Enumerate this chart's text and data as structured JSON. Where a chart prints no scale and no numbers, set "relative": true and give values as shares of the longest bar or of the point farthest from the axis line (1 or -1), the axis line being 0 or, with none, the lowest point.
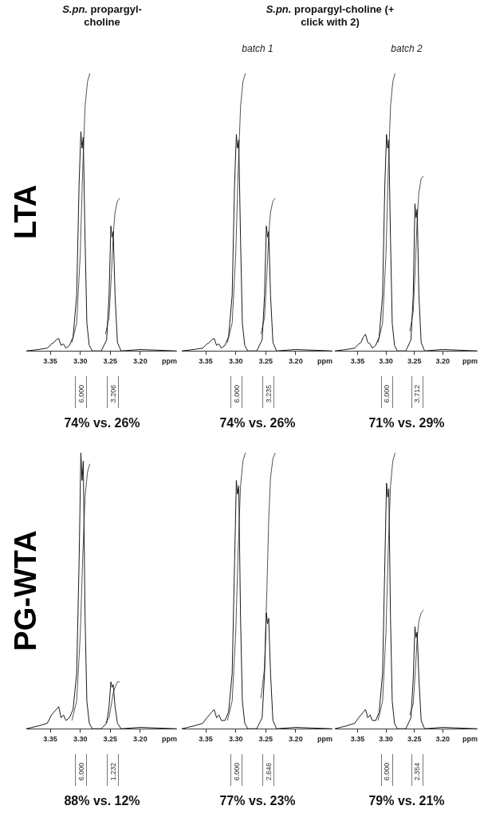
{
  "chart_data": [
    {
      "type": "line",
      "title": "S.pn. propargyl-choline",
      "ylabel": "LTA",
      "xlabel": "ppm",
      "relative": true,
      "xlim": [
        3.39,
        3.14
      ],
      "xticks": [
        {
          "value": 3.35,
          "label": "3.35"
        },
        {
          "value": 3.3,
          "label": "3.30"
        },
        {
          "value": 3.25,
          "label": "3.25"
        },
        {
          "value": 3.2,
          "label": "3.20"
        }
      ],
      "series": [
        {
          "color": "#1a1a1a",
          "x": [
            3.39,
            3.37,
            3.355,
            3.348,
            3.344,
            3.34,
            3.336,
            3.332,
            3.328,
            3.324,
            3.318,
            3.312,
            3.306,
            3.302,
            3.299,
            3.297,
            3.295,
            3.292,
            3.289,
            3.285,
            3.28,
            3.265,
            3.256,
            3.252,
            3.249,
            3.247,
            3.245,
            3.242,
            3.238,
            3.232,
            3.2,
            3.14
          ],
          "values": [
            0,
            0.005,
            0.01,
            0.025,
            0.03,
            0.04,
            0.045,
            0.02,
            0.025,
            0.01,
            0.02,
            0.05,
            0.2,
            0.6,
            0.79,
            0.73,
            0.77,
            0.4,
            0.1,
            0.02,
            0,
            0,
            0.04,
            0.2,
            0.45,
            0.41,
            0.43,
            0.2,
            0.03,
            0,
            0.005,
            0
          ]
        },
        {
          "color": "#555555",
          "x": [
            3.314,
            3.306,
            3.3,
            3.296,
            3.292,
            3.288,
            3.284,
            3.27,
            3.258,
            3.252,
            3.248,
            3.245,
            3.242,
            3.238,
            3.234
          ],
          "values": [
            0.03,
            0.1,
            0.35,
            0.65,
            0.88,
            0.97,
            1.0,
            null,
            0.06,
            0.12,
            0.28,
            0.42,
            0.5,
            0.54,
            0.55
          ]
        }
      ],
      "annotations": [
        "6.000",
        "3.206",
        "74% vs. 26%"
      ]
    },
    {
      "type": "line",
      "title": "S.pn. propargyl-choline (+ click with 2)",
      "subtitle": "batch 1",
      "xlabel": "ppm",
      "relative": true,
      "xlim": [
        3.39,
        3.14
      ],
      "xticks": [
        {
          "value": 3.35,
          "label": "3.35"
        },
        {
          "value": 3.3,
          "label": "3.30"
        },
        {
          "value": 3.25,
          "label": "3.25"
        },
        {
          "value": 3.2,
          "label": "3.20"
        }
      ],
      "series": [
        {
          "color": "#1a1a1a",
          "x": [
            3.39,
            3.37,
            3.355,
            3.348,
            3.344,
            3.34,
            3.336,
            3.332,
            3.328,
            3.324,
            3.318,
            3.312,
            3.306,
            3.302,
            3.299,
            3.297,
            3.295,
            3.292,
            3.289,
            3.285,
            3.28,
            3.265,
            3.256,
            3.252,
            3.249,
            3.247,
            3.245,
            3.242,
            3.238,
            3.232,
            3.2,
            3.14
          ],
          "values": [
            0,
            0.005,
            0.01,
            0.025,
            0.03,
            0.04,
            0.045,
            0.02,
            0.025,
            0.01,
            0.02,
            0.05,
            0.2,
            0.6,
            0.78,
            0.73,
            0.76,
            0.4,
            0.1,
            0.02,
            0,
            0,
            0.04,
            0.2,
            0.45,
            0.41,
            0.43,
            0.2,
            0.03,
            0,
            0.005,
            0
          ]
        },
        {
          "color": "#555555",
          "x": [
            3.314,
            3.306,
            3.3,
            3.296,
            3.292,
            3.288,
            3.284,
            3.27,
            3.258,
            3.252,
            3.248,
            3.245,
            3.242,
            3.238,
            3.234
          ],
          "values": [
            0.03,
            0.1,
            0.35,
            0.65,
            0.88,
            0.97,
            1.0,
            null,
            0.06,
            0.12,
            0.28,
            0.42,
            0.5,
            0.54,
            0.55
          ]
        }
      ],
      "annotations": [
        "6.000",
        "3.235",
        "74% vs. 26%"
      ]
    },
    {
      "type": "line",
      "subtitle": "batch 2",
      "xlabel": "ppm",
      "relative": true,
      "xlim": [
        3.39,
        3.14
      ],
      "xticks": [
        {
          "value": 3.35,
          "label": "3.35"
        },
        {
          "value": 3.3,
          "label": "3.30"
        },
        {
          "value": 3.25,
          "label": "3.25"
        },
        {
          "value": 3.2,
          "label": "3.20"
        }
      ],
      "series": [
        {
          "color": "#1a1a1a",
          "x": [
            3.39,
            3.37,
            3.355,
            3.348,
            3.344,
            3.34,
            3.336,
            3.332,
            3.328,
            3.324,
            3.318,
            3.312,
            3.306,
            3.302,
            3.299,
            3.297,
            3.295,
            3.292,
            3.289,
            3.285,
            3.28,
            3.265,
            3.256,
            3.252,
            3.249,
            3.247,
            3.245,
            3.242,
            3.238,
            3.232,
            3.2,
            3.14
          ],
          "values": [
            0,
            0.005,
            0.01,
            0.025,
            0.03,
            0.05,
            0.06,
            0.03,
            0.025,
            0.01,
            0.02,
            0.05,
            0.2,
            0.6,
            0.78,
            0.73,
            0.76,
            0.4,
            0.1,
            0.02,
            0,
            0,
            0.04,
            0.2,
            0.53,
            0.48,
            0.51,
            0.2,
            0.03,
            0,
            0.005,
            0
          ]
        },
        {
          "color": "#555555",
          "x": [
            3.314,
            3.306,
            3.3,
            3.296,
            3.292,
            3.288,
            3.284,
            3.27,
            3.258,
            3.252,
            3.248,
            3.245,
            3.242,
            3.238,
            3.234
          ],
          "values": [
            0.03,
            0.1,
            0.35,
            0.65,
            0.88,
            0.97,
            1.0,
            null,
            0.07,
            0.14,
            0.32,
            0.48,
            0.57,
            0.62,
            0.63
          ]
        }
      ],
      "annotations": [
        "6.000",
        "3.712",
        "71% vs. 29%"
      ]
    },
    {
      "type": "line",
      "ylabel": "PG-WTA",
      "xlabel": "ppm",
      "relative": true,
      "xlim": [
        3.39,
        3.14
      ],
      "xticks": [
        {
          "value": 3.35,
          "label": "3.35"
        },
        {
          "value": 3.3,
          "label": "3.30"
        },
        {
          "value": 3.25,
          "label": "3.25"
        },
        {
          "value": 3.2,
          "label": "3.20"
        }
      ],
      "series": [
        {
          "color": "#1a1a1a",
          "x": [
            3.39,
            3.37,
            3.355,
            3.348,
            3.344,
            3.34,
            3.336,
            3.332,
            3.328,
            3.324,
            3.318,
            3.312,
            3.306,
            3.302,
            3.299,
            3.297,
            3.295,
            3.292,
            3.289,
            3.285,
            3.28,
            3.265,
            3.256,
            3.252,
            3.249,
            3.247,
            3.245,
            3.242,
            3.238,
            3.232,
            3.2,
            3.14
          ],
          "values": [
            0,
            0.01,
            0.02,
            0.05,
            0.06,
            0.07,
            0.08,
            0.04,
            0.05,
            0.03,
            0.04,
            0.07,
            0.2,
            0.6,
            1.0,
            0.9,
            0.97,
            0.4,
            0.1,
            0.02,
            0,
            0,
            0.02,
            0.08,
            0.17,
            0.15,
            0.16,
            0.08,
            0.02,
            0,
            0.005,
            0
          ]
        },
        {
          "color": "#555555",
          "x": [
            3.314,
            3.306,
            3.3,
            3.296,
            3.292,
            3.288,
            3.284,
            3.27,
            3.258,
            3.252,
            3.248,
            3.245,
            3.242,
            3.238,
            3.234
          ],
          "values": [
            0.03,
            0.1,
            0.34,
            0.62,
            0.84,
            0.93,
            0.96,
            null,
            0.02,
            0.04,
            0.09,
            0.13,
            0.15,
            0.17,
            0.17
          ]
        }
      ],
      "annotations": [
        "6.000",
        "1.232",
        "88% vs. 12%"
      ]
    },
    {
      "type": "line",
      "xlabel": "ppm",
      "relative": true,
      "xlim": [
        3.39,
        3.14
      ],
      "xticks": [
        {
          "value": 3.35,
          "label": "3.35"
        },
        {
          "value": 3.3,
          "label": "3.30"
        },
        {
          "value": 3.25,
          "label": "3.25"
        },
        {
          "value": 3.2,
          "label": "3.20"
        }
      ],
      "series": [
        {
          "color": "#1a1a1a",
          "x": [
            3.39,
            3.37,
            3.355,
            3.348,
            3.344,
            3.34,
            3.336,
            3.332,
            3.328,
            3.324,
            3.318,
            3.312,
            3.306,
            3.302,
            3.299,
            3.297,
            3.295,
            3.292,
            3.289,
            3.285,
            3.28,
            3.265,
            3.256,
            3.252,
            3.249,
            3.247,
            3.245,
            3.242,
            3.238,
            3.232,
            3.2,
            3.14
          ],
          "values": [
            0,
            0.01,
            0.02,
            0.04,
            0.05,
            0.06,
            0.07,
            0.04,
            0.05,
            0.03,
            0.03,
            0.06,
            0.2,
            0.6,
            0.9,
            0.85,
            0.88,
            0.4,
            0.1,
            0.02,
            0,
            0,
            0.04,
            0.2,
            0.42,
            0.38,
            0.4,
            0.2,
            0.03,
            0,
            0.005,
            0
          ]
        },
        {
          "color": "#555555",
          "x": [
            3.314,
            3.306,
            3.3,
            3.296,
            3.292,
            3.288,
            3.284,
            3.27,
            3.258,
            3.252,
            3.248,
            3.245,
            3.242,
            3.238,
            3.234
          ],
          "values": [
            0.03,
            0.1,
            0.35,
            0.65,
            0.88,
            0.97,
            1.0,
            null,
            0.11,
            0.22,
            0.51,
            0.76,
            0.91,
            0.98,
            1.0
          ]
        }
      ],
      "annotations": [
        "6.000",
        "2.646",
        "77% vs. 23%"
      ]
    },
    {
      "type": "line",
      "xlabel": "ppm",
      "relative": true,
      "xlim": [
        3.39,
        3.14
      ],
      "xticks": [
        {
          "value": 3.35,
          "label": "3.35"
        },
        {
          "value": 3.3,
          "label": "3.30"
        },
        {
          "value": 3.25,
          "label": "3.25"
        },
        {
          "value": 3.2,
          "label": "3.20"
        }
      ],
      "series": [
        {
          "color": "#1a1a1a",
          "x": [
            3.39,
            3.37,
            3.355,
            3.348,
            3.344,
            3.34,
            3.336,
            3.332,
            3.328,
            3.324,
            3.318,
            3.312,
            3.306,
            3.302,
            3.299,
            3.297,
            3.295,
            3.292,
            3.289,
            3.285,
            3.28,
            3.265,
            3.256,
            3.252,
            3.249,
            3.247,
            3.245,
            3.242,
            3.238,
            3.232,
            3.2,
            3.14
          ],
          "values": [
            0,
            0.01,
            0.02,
            0.04,
            0.05,
            0.06,
            0.07,
            0.04,
            0.05,
            0.03,
            0.03,
            0.06,
            0.2,
            0.6,
            0.89,
            0.84,
            0.87,
            0.4,
            0.1,
            0.02,
            0,
            0,
            0.04,
            0.18,
            0.37,
            0.33,
            0.35,
            0.18,
            0.03,
            0,
            0.005,
            0
          ]
        },
        {
          "color": "#555555",
          "x": [
            3.314,
            3.306,
            3.3,
            3.296,
            3.292,
            3.288,
            3.284,
            3.27,
            3.258,
            3.252,
            3.248,
            3.245,
            3.242,
            3.238,
            3.234
          ],
          "values": [
            0.03,
            0.1,
            0.35,
            0.65,
            0.88,
            0.97,
            1.0,
            null,
            0.05,
            0.09,
            0.22,
            0.33,
            0.39,
            0.42,
            0.43
          ]
        }
      ],
      "annotations": [
        "6.000",
        "2.354",
        "79% vs. 21%"
      ]
    }
  ]
}
